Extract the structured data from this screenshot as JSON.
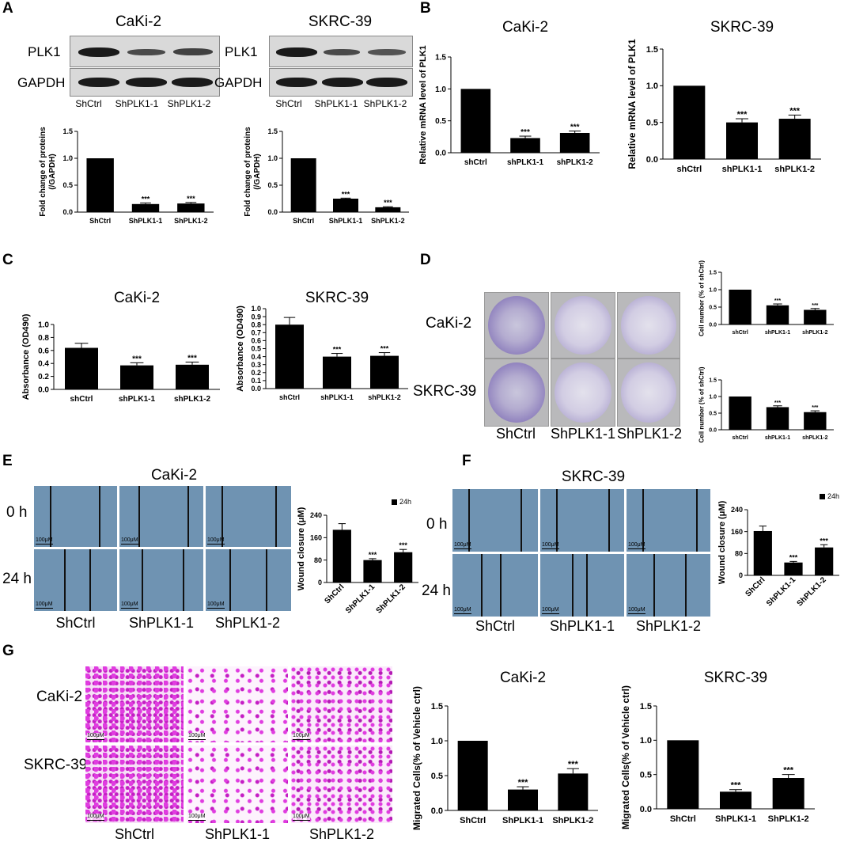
{
  "panels": {
    "A": {
      "label": "A",
      "blots": [
        {
          "title": "CaKi-2",
          "rows": [
            "PLK1",
            "GAPDH"
          ],
          "lanes": [
            "ShCtrl",
            "ShPLK1-1",
            "ShPLK1-2"
          ]
        },
        {
          "title": "SKRC-39",
          "rows": [
            "PLK1",
            "GAPDH"
          ],
          "lanes": [
            "ShCtrl",
            "ShPLK1-1",
            "ShPLK1-2"
          ]
        }
      ]
    },
    "B": {
      "label": "B"
    },
    "C": {
      "label": "C"
    },
    "D": {
      "label": "D",
      "rows": [
        "CaKi-2",
        "SKRC-39"
      ],
      "cols": [
        "ShCtrl",
        "ShPLK1-1",
        "ShPLK1-2"
      ]
    },
    "E": {
      "label": "E",
      "title": "CaKi-2",
      "rows": [
        "0 h",
        "24 h"
      ],
      "cols": [
        "ShCtrl",
        "ShPLK1-1",
        "ShPLK1-2"
      ],
      "scale": "100μM"
    },
    "F": {
      "label": "F",
      "title": "SKRC-39",
      "rows": [
        "0 h",
        "24 h"
      ],
      "cols": [
        "ShCtrl",
        "ShPLK1-1",
        "ShPLK1-2"
      ],
      "scale": "100μM"
    },
    "G": {
      "label": "G",
      "rows": [
        "CaKi-2",
        "SKRC-39"
      ],
      "cols": [
        "ShCtrl",
        "ShPLK1-1",
        "ShPLK1-2"
      ],
      "scale": "100μM"
    }
  },
  "chart_data": [
    {
      "id": "A-CaKi2",
      "type": "bar",
      "title": "",
      "categories": [
        "ShCtrl",
        "ShPLK1-1",
        "ShPLK1-2"
      ],
      "values": [
        1.0,
        0.15,
        0.16
      ],
      "errors": [
        0,
        0.02,
        0.02
      ],
      "sig": [
        "",
        "***",
        "***"
      ],
      "ylabel": [
        "Fold change of proteins",
        "(/GAPDH)"
      ],
      "ylim": [
        0,
        1.5
      ],
      "yticks": [
        "0.0",
        "0.5",
        "1.0",
        "1.5"
      ]
    },
    {
      "id": "A-SKRC39",
      "type": "bar",
      "title": "",
      "categories": [
        "ShCtrl",
        "ShPLK1-1",
        "ShPLK1-2"
      ],
      "values": [
        1.0,
        0.25,
        0.09
      ],
      "errors": [
        0,
        0.01,
        0.01
      ],
      "sig": [
        "",
        "***",
        "***"
      ],
      "ylabel": [
        "Fold change of proteins",
        "(/GAPDH)"
      ],
      "ylim": [
        0,
        1.5
      ],
      "yticks": [
        "0.0",
        "0.5",
        "1.0",
        "1.5"
      ]
    },
    {
      "id": "B-CaKi2",
      "type": "bar",
      "title": "CaKi-2",
      "categories": [
        "shCtrl",
        "shPLK1-1",
        "shPLK1-2"
      ],
      "values": [
        1.0,
        0.23,
        0.31
      ],
      "errors": [
        0,
        0.03,
        0.03
      ],
      "sig": [
        "",
        "***",
        "***"
      ],
      "ylabel": [
        "Relative mRNA level of PLK1"
      ],
      "ylim": [
        0,
        1.5
      ],
      "yticks": [
        "0.0",
        "0.5",
        "1.0",
        "1.5"
      ]
    },
    {
      "id": "B-SKRC39",
      "type": "bar",
      "title": "SKRC-39",
      "categories": [
        "shCtrl",
        "shPLK1-1",
        "shPLK1-2"
      ],
      "values": [
        1.0,
        0.5,
        0.55
      ],
      "errors": [
        0,
        0.05,
        0.05
      ],
      "sig": [
        "",
        "***",
        "***"
      ],
      "ylabel": [
        "Relative mRNA level of PLK1"
      ],
      "ylim": [
        0,
        1.5
      ],
      "yticks": [
        "0.0",
        "0.5",
        "1.0",
        "1.5"
      ]
    },
    {
      "id": "C-CaKi2",
      "type": "bar",
      "title": "CaKi-2",
      "categories": [
        "shCtrl",
        "shPLK1-1",
        "shPLK1-2"
      ],
      "values": [
        0.64,
        0.37,
        0.38
      ],
      "errors": [
        0.07,
        0.04,
        0.04
      ],
      "sig": [
        "",
        "***",
        "***"
      ],
      "ylabel": [
        "Absorbance (OD490)"
      ],
      "ylim": [
        0,
        1.0
      ],
      "yticks": [
        "0.0",
        "0.2",
        "0.4",
        "0.6",
        "0.8",
        "1.0"
      ]
    },
    {
      "id": "C-SKRC39",
      "type": "bar",
      "title": "SKRC-39",
      "categories": [
        "shCtrl",
        "shPLK1-1",
        "shPLK1-2"
      ],
      "values": [
        0.8,
        0.4,
        0.41
      ],
      "errors": [
        0.09,
        0.04,
        0.04
      ],
      "sig": [
        "",
        "***",
        "***"
      ],
      "ylabel": [
        "Absorbance (OD490)"
      ],
      "ylim": [
        0,
        1.0
      ],
      "yticks": [
        "0.0",
        "0.1",
        "0.2",
        "0.3",
        "0.4",
        "0.5",
        "0.6",
        "0.7",
        "0.8",
        "0.9",
        "1.0"
      ]
    },
    {
      "id": "D-CaKi2",
      "type": "bar",
      "title": "",
      "categories": [
        "shCtrl",
        "shPLK1-1",
        "shPLK1-2"
      ],
      "values": [
        1.0,
        0.55,
        0.42
      ],
      "errors": [
        0,
        0.04,
        0.04
      ],
      "sig": [
        "",
        "***",
        "***"
      ],
      "ylabel": [
        "Cell number (% of shCtrl)"
      ],
      "ylim": [
        0,
        1.5
      ],
      "yticks": [
        "0.0",
        "0.5",
        "1.0",
        "1.5"
      ]
    },
    {
      "id": "D-SKRC39",
      "type": "bar",
      "title": "",
      "categories": [
        "shCtrl",
        "shPLK1-1",
        "shPLK1-2"
      ],
      "values": [
        1.0,
        0.68,
        0.53
      ],
      "errors": [
        0,
        0.04,
        0.04
      ],
      "sig": [
        "",
        "***",
        "***"
      ],
      "ylabel": [
        "Cell number (% of shCtrl)"
      ],
      "ylim": [
        0,
        1.5
      ],
      "yticks": [
        "0.0",
        "0.5",
        "1.0",
        "1.5"
      ]
    },
    {
      "id": "E-CaKi2",
      "type": "bar",
      "title": "",
      "categories": [
        "ShCtrl",
        "ShPLK1-1",
        "ShPLK1-2"
      ],
      "values": [
        188,
        80,
        108
      ],
      "errors": [
        22,
        5,
        10
      ],
      "sig": [
        "",
        "***",
        "***"
      ],
      "ylabel": [
        "Wound closure (μM)"
      ],
      "ylim": [
        0,
        240
      ],
      "yticks": [
        "0",
        "80",
        "160",
        "240"
      ],
      "legend": "24h",
      "rotate": true
    },
    {
      "id": "F-SKRC39",
      "type": "bar",
      "title": "",
      "categories": [
        "ShCtrl",
        "ShPLK1-1",
        "ShPLK1-2"
      ],
      "values": [
        162,
        47,
        102
      ],
      "errors": [
        18,
        4,
        10
      ],
      "sig": [
        "",
        "***",
        "***"
      ],
      "ylabel": [
        "Wound closure (μM)"
      ],
      "ylim": [
        0,
        240
      ],
      "yticks": [
        "0",
        "80",
        "160",
        "240"
      ],
      "legend": "24h",
      "rotate": true
    },
    {
      "id": "G-CaKi2",
      "type": "bar",
      "title": "CaKi-2",
      "categories": [
        "ShCtrl",
        "ShPLK1-1",
        "ShPLK1-2"
      ],
      "values": [
        1.0,
        0.3,
        0.53
      ],
      "errors": [
        0,
        0.04,
        0.07
      ],
      "sig": [
        "",
        "***",
        "***"
      ],
      "ylabel": [
        "Migrated Cells(% of Vehicle ctrl)"
      ],
      "ylim": [
        0,
        1.5
      ],
      "yticks": [
        "0.0",
        "0.5",
        "1.0",
        "1.5"
      ]
    },
    {
      "id": "G-SKRC39",
      "type": "bar",
      "title": "SKRC-39",
      "categories": [
        "ShCtrl",
        "ShPLK1-1",
        "ShPLK1-2"
      ],
      "values": [
        1.0,
        0.25,
        0.45
      ],
      "errors": [
        0,
        0.03,
        0.05
      ],
      "sig": [
        "",
        "***",
        "***"
      ],
      "ylabel": [
        "Migrated Cells(% of Vehicle ctrl)"
      ],
      "ylim": [
        0,
        1.5
      ],
      "yticks": [
        "0.0",
        "0.5",
        "1.0",
        "1.5"
      ]
    }
  ]
}
